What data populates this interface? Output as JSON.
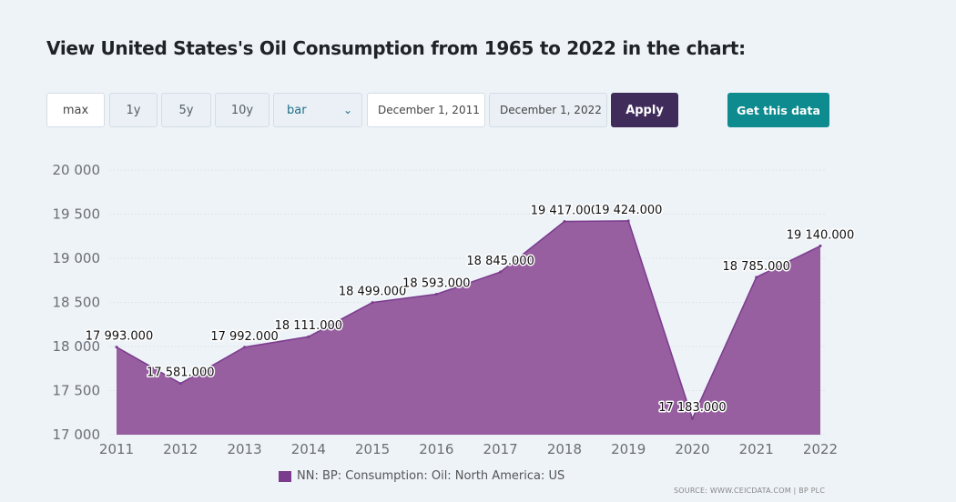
{
  "title": "View United States's Oil Consumption from 1965 to 2022 in the chart:",
  "controls": {
    "range_buttons": [
      "max",
      "1y",
      "5y",
      "10y"
    ],
    "chart_type": "bar",
    "start_date": "December 1, 2011",
    "end_date": "December 1, 2022",
    "apply_label": "Apply",
    "get_data_label": "Get this data"
  },
  "colors": {
    "area_fill": "#975ea0",
    "area_stroke": "#7b3c8e",
    "apply_bg": "#3f2c5a",
    "get_data_bg": "#0e8b8e"
  },
  "chart_data": {
    "type": "area",
    "x": [
      "2011",
      "2012",
      "2013",
      "2014",
      "2015",
      "2016",
      "2017",
      "2018",
      "2019",
      "2020",
      "2021",
      "2022"
    ],
    "series": [
      {
        "name": "NN: BP: Consumption: Oil: North America: US",
        "values": [
          17993,
          17581,
          17992,
          18111,
          18499,
          18593,
          18845,
          19417,
          19424,
          17183,
          18785,
          19140
        ],
        "labels": [
          "17 993.000",
          "17 581.000",
          "17 992.000",
          "18 111.000",
          "18 499.000",
          "18 593.000",
          "18 845.000",
          "19 417.000",
          "19 424.000",
          "17 183.000",
          "18 785.000",
          "19 140.000"
        ]
      }
    ],
    "ylim": [
      17000,
      20000
    ],
    "yticks": [
      17000,
      17500,
      18000,
      18500,
      19000,
      19500,
      20000
    ],
    "ytick_labels": [
      "17 000",
      "17 500",
      "18 000",
      "18 500",
      "19 000",
      "19 500",
      "20 000"
    ],
    "legend": "NN: BP: Consumption: Oil: North America: US",
    "source": "SOURCE: WWW.CEICDATA.COM | BP PLC"
  }
}
